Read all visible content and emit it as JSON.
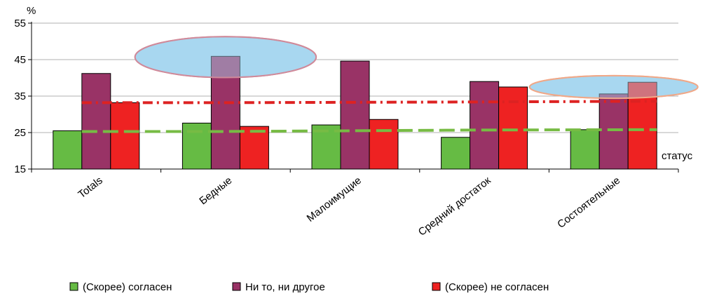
{
  "chart_data": {
    "type": "bar",
    "ylabel": "%",
    "xlabel": "статус",
    "ylim": [
      15,
      55
    ],
    "yticks": [
      15,
      25,
      35,
      45,
      55
    ],
    "grid": true,
    "legend_position": "bottom",
    "categories": [
      "Totals",
      "Бедные",
      "Малоимущие",
      "Средний достаток",
      "Состоятельные"
    ],
    "series": [
      {
        "name": "(Скорее) согласен",
        "color": "#66bb44",
        "values": [
          25.5,
          27.6,
          27.1,
          23.7,
          25.8
        ]
      },
      {
        "name": "Ни то, ни другое",
        "color": "#993366",
        "values": [
          41.2,
          45.9,
          44.6,
          39.0,
          35.6
        ]
      },
      {
        "name": "(Скорее) не согласен",
        "color": "#ee2222",
        "values": [
          33.2,
          26.7,
          28.6,
          37.5,
          38.8
        ]
      }
    ],
    "reference_lines": [
      {
        "style": "dashed",
        "color": "#77bb44",
        "values": [
          25.3,
          25.3,
          25.5,
          25.7,
          25.8
        ]
      },
      {
        "style": "dash-dot",
        "color": "#dd2222",
        "values": [
          33.2,
          33.2,
          33.3,
          33.4,
          33.6
        ]
      }
    ],
    "highlights": [
      {
        "category": "Бедные",
        "center_value": 45.7,
        "rx_categories": 0.7,
        "ry_values": 5.6,
        "fill": "#a8d8f0",
        "stroke": "#d08a9a"
      },
      {
        "category": "Состоятельные",
        "center_value": 37.5,
        "rx_categories": 0.65,
        "ry_values": 3.1,
        "fill": "#a8d8f0",
        "stroke": "#f0a888"
      }
    ]
  }
}
